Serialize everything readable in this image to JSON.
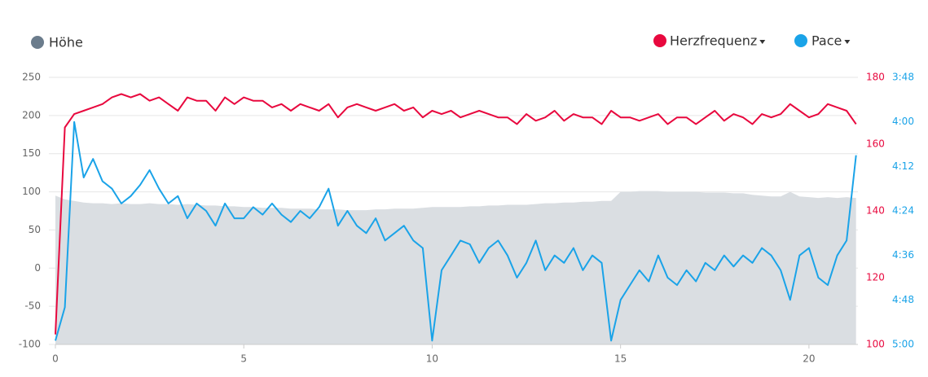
{
  "chart_data": {
    "type": "line",
    "x": [
      0,
      0.25,
      0.5,
      0.75,
      1,
      1.25,
      1.5,
      1.75,
      2,
      2.25,
      2.5,
      2.75,
      3,
      3.25,
      3.5,
      3.75,
      4,
      4.25,
      4.5,
      4.75,
      5,
      5.25,
      5.5,
      5.75,
      6,
      6.25,
      6.5,
      6.75,
      7,
      7.25,
      7.5,
      7.75,
      8,
      8.25,
      8.5,
      8.75,
      9,
      9.25,
      9.5,
      9.75,
      10,
      10.25,
      10.5,
      10.75,
      11,
      11.25,
      11.5,
      11.75,
      12,
      12.25,
      12.5,
      12.75,
      13,
      13.25,
      13.5,
      13.75,
      14,
      14.25,
      14.5,
      14.75,
      15,
      15.25,
      15.5,
      15.75,
      16,
      16.25,
      16.5,
      16.75,
      17,
      17.25,
      17.5,
      17.75,
      18,
      18.25,
      18.5,
      18.75,
      19,
      19.25,
      19.5,
      19.75,
      20,
      20.25,
      20.5,
      20.75,
      21,
      21.25
    ],
    "xlim": [
      0,
      21.3
    ],
    "xticks": [
      0,
      5,
      10,
      15,
      20
    ],
    "ylim": [
      -100,
      250
    ],
    "yticks": [
      -100,
      -50,
      0,
      50,
      100,
      150,
      200,
      250
    ],
    "y2lim": [
      100,
      180
    ],
    "y2ticks": [
      100,
      120,
      140,
      160,
      180
    ],
    "y3lim": [
      300,
      228
    ],
    "y3ticks": [
      {
        "value": 228,
        "label": "3:48"
      },
      {
        "value": 240,
        "label": "4:00"
      },
      {
        "value": 252,
        "label": "4:12"
      },
      {
        "value": 264,
        "label": "4:24"
      },
      {
        "value": 276,
        "label": "4:36"
      },
      {
        "value": 288,
        "label": "4:48"
      },
      {
        "value": 300,
        "label": "5:00"
      }
    ],
    "grid": true,
    "series": [
      {
        "name": "Höhe",
        "color": "#dadee2",
        "axis": "y",
        "kind": "area",
        "values": [
          95,
          90,
          88,
          86,
          85,
          85,
          84,
          85,
          84,
          84,
          85,
          84,
          84,
          83,
          84,
          83,
          82,
          82,
          81,
          81,
          80,
          80,
          79,
          79,
          79,
          78,
          78,
          78,
          77,
          77,
          77,
          76,
          76,
          76,
          77,
          77,
          78,
          78,
          78,
          79,
          80,
          80,
          80,
          80,
          81,
          81,
          82,
          82,
          83,
          83,
          83,
          84,
          85,
          85,
          86,
          86,
          87,
          87,
          88,
          88,
          100,
          100,
          101,
          101,
          101,
          100,
          100,
          100,
          100,
          99,
          99,
          99,
          98,
          98,
          96,
          95,
          94,
          94,
          100,
          94,
          93,
          92,
          93,
          92,
          93,
          92
        ]
      },
      {
        "name": "Herzfrequenz",
        "color": "#e8083e",
        "axis": "y2",
        "kind": "line",
        "values": [
          103,
          165,
          169,
          170,
          171,
          172,
          174,
          175,
          174,
          175,
          173,
          174,
          172,
          170,
          174,
          173,
          173,
          170,
          174,
          172,
          174,
          173,
          173,
          171,
          172,
          170,
          172,
          171,
          170,
          172,
          168,
          171,
          172,
          171,
          170,
          171,
          172,
          170,
          171,
          168,
          170,
          169,
          170,
          168,
          169,
          170,
          169,
          168,
          168,
          166,
          169,
          167,
          168,
          170,
          167,
          169,
          168,
          168,
          166,
          170,
          168,
          168,
          167,
          168,
          169,
          166,
          168,
          168,
          166,
          168,
          170,
          167,
          169,
          168,
          166,
          169,
          168,
          169,
          172,
          170,
          168,
          169,
          172,
          171,
          170,
          166
        ]
      },
      {
        "name": "Pace",
        "color": "#1aa3e8",
        "axis": "y3",
        "kind": "line",
        "values": [
          299,
          290,
          240,
          255,
          250,
          256,
          258,
          262,
          260,
          257,
          253,
          258,
          262,
          260,
          266,
          262,
          264,
          268,
          262,
          266,
          266,
          263,
          265,
          262,
          265,
          267,
          264,
          266,
          263,
          258,
          268,
          264,
          268,
          270,
          266,
          272,
          270,
          268,
          272,
          274,
          299,
          280,
          276,
          272,
          273,
          278,
          274,
          272,
          276,
          282,
          278,
          272,
          280,
          276,
          278,
          274,
          280,
          276,
          278,
          299,
          288,
          284,
          280,
          283,
          276,
          282,
          284,
          280,
          283,
          278,
          280,
          276,
          279,
          276,
          278,
          274,
          276,
          280,
          288,
          276,
          274,
          282,
          284,
          276,
          272,
          249
        ]
      }
    ]
  }
}
